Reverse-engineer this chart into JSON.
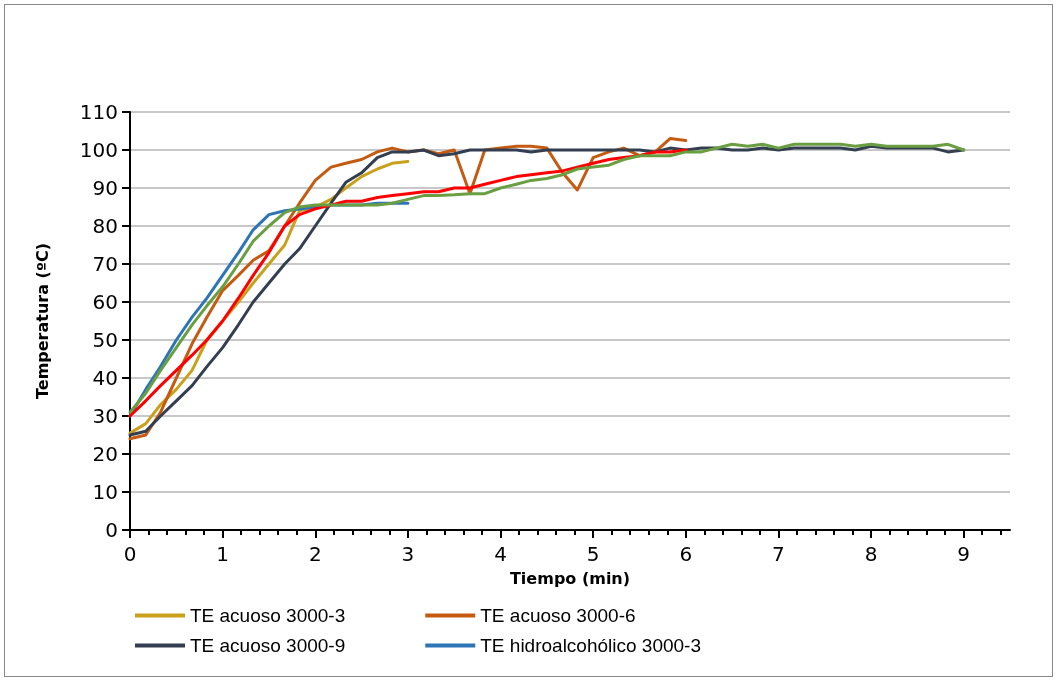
{
  "chart_data": {
    "type": "line",
    "xlabel": "Tiempo (min)",
    "ylabel": "Temperatura (ºC)",
    "x": [
      0,
      0.17,
      0.33,
      0.5,
      0.67,
      0.83,
      1,
      1.17,
      1.33,
      1.5,
      1.67,
      1.83,
      2,
      2.17,
      2.33,
      2.5,
      2.67,
      2.83,
      3,
      3.17,
      3.33,
      3.5,
      3.67,
      3.83,
      4,
      4.17,
      4.33,
      4.5,
      4.67,
      4.83,
      5,
      5.17,
      5.33,
      5.5,
      5.67,
      5.83,
      6,
      6.17,
      6.33,
      6.5,
      6.67,
      6.83,
      7,
      7.17,
      7.33,
      7.5,
      7.67,
      7.83,
      8,
      8.17,
      8.33,
      8.5,
      8.67,
      8.83,
      9
    ],
    "series": [
      {
        "name": "TE acuoso 3000-3",
        "color": "#c9a01c",
        "x": [
          0,
          0.17,
          0.33,
          0.5,
          0.67,
          0.83,
          1,
          1.17,
          1.33,
          1.5,
          1.67,
          1.83,
          2,
          2.17,
          2.33,
          2.5,
          2.67,
          2.83,
          3
        ],
        "values": [
          25.5,
          28,
          33,
          37,
          42,
          50,
          55,
          60,
          65,
          70,
          75,
          84,
          85,
          87,
          90,
          93,
          95,
          96.5,
          97
        ]
      },
      {
        "name": "TE acuoso 3000-6",
        "color": "#c55a11",
        "x": [
          0,
          0.17,
          0.33,
          0.5,
          0.67,
          0.83,
          1,
          1.17,
          1.33,
          1.5,
          1.67,
          1.83,
          2,
          2.17,
          2.33,
          2.5,
          2.67,
          2.83,
          3,
          3.17,
          3.33,
          3.5,
          3.67,
          3.83,
          4,
          4.17,
          4.33,
          4.5,
          4.67,
          4.83,
          5,
          5.17,
          5.33,
          5.5,
          5.67,
          5.83,
          6
        ],
        "values": [
          24,
          25,
          31,
          40,
          49,
          56,
          63,
          67,
          71,
          73.5,
          80,
          86,
          92,
          95.5,
          96.5,
          97.5,
          99.5,
          100.5,
          99.5,
          100,
          99,
          100,
          88.5,
          100,
          100.5,
          101,
          101,
          100.5,
          94,
          89.5,
          98,
          99.5,
          100.5,
          98.5,
          99.5,
          103,
          102.5
        ]
      },
      {
        "name": "TE acuoso 3000-9",
        "color": "#333f50",
        "values": [
          25,
          26,
          30,
          34,
          38,
          43,
          48,
          54,
          60,
          65,
          70,
          74,
          80,
          86,
          91.5,
          94,
          98,
          99.5,
          99.5,
          100,
          98.5,
          99,
          100,
          100,
          100,
          100,
          99.5,
          100,
          100,
          100,
          100,
          100,
          100,
          100,
          99.5,
          100.5,
          100,
          100.5,
          100.5,
          100,
          100,
          100.5,
          100,
          100.5,
          100.5,
          100.5,
          100.5,
          100,
          101,
          100.5,
          100.5,
          100.5,
          100.5,
          99.5,
          100
        ]
      },
      {
        "name": "TE hidroalcohólico 3000-3",
        "color": "#2e75b6",
        "x": [
          0,
          0.17,
          0.33,
          0.5,
          0.67,
          0.83,
          1,
          1.17,
          1.33,
          1.5,
          1.67,
          1.83,
          2,
          2.17,
          2.33,
          2.5,
          2.67,
          2.83,
          3
        ],
        "values": [
          30,
          37,
          43,
          50,
          56,
          61,
          67,
          73,
          79,
          83,
          84,
          84.5,
          85,
          85.5,
          85.5,
          85.5,
          86,
          86,
          86
        ]
      },
      {
        "color": "#ff0000",
        "x": [
          0,
          0.17,
          0.33,
          0.5,
          0.67,
          0.83,
          1,
          1.17,
          1.33,
          1.5,
          1.67,
          1.83,
          2,
          2.17,
          2.33,
          2.5,
          2.67,
          2.83,
          3,
          3.17,
          3.33,
          3.5,
          3.67,
          3.83,
          4,
          4.17,
          4.33,
          4.5,
          4.67,
          4.83,
          5,
          5.17,
          5.33,
          5.5,
          5.67,
          5.83,
          6
        ],
        "values": [
          30,
          34,
          38,
          42,
          46,
          50,
          55,
          61,
          67,
          73,
          80,
          83,
          84.5,
          85.5,
          86.5,
          86.5,
          87.5,
          88,
          88.5,
          89,
          89,
          90,
          90,
          91,
          92,
          93,
          93.5,
          94,
          94.5,
          95.5,
          96.5,
          97.5,
          98,
          98.5,
          99.5,
          99.5,
          100
        ]
      },
      {
        "color": "#6a9f41",
        "values": [
          31,
          36,
          42,
          48,
          54,
          59,
          64,
          70,
          76,
          80,
          83.5,
          85,
          85.5,
          85.5,
          85.5,
          85.5,
          85.5,
          86,
          87,
          88,
          88,
          88.2,
          88.5,
          88.5,
          90,
          91,
          92,
          92.5,
          93.5,
          95,
          95.5,
          96,
          97.5,
          98.5,
          98.5,
          98.5,
          99.5,
          99.5,
          100.5,
          101.5,
          101,
          101.5,
          100.5,
          101.5,
          101.5,
          101.5,
          101.5,
          101,
          101.5,
          101,
          101,
          101,
          101,
          101.5,
          100
        ]
      }
    ],
    "xlim": [
      0,
      9.5
    ],
    "xticks": [
      0,
      1,
      2,
      3,
      4,
      5,
      6,
      7,
      8,
      9
    ],
    "ylim": [
      0,
      110
    ],
    "yticks": [
      0,
      10,
      20,
      30,
      40,
      50,
      60,
      70,
      80,
      90,
      100,
      110
    ],
    "grid": "y",
    "legend": "bottom",
    "marker": "none",
    "line_style": "solid"
  }
}
